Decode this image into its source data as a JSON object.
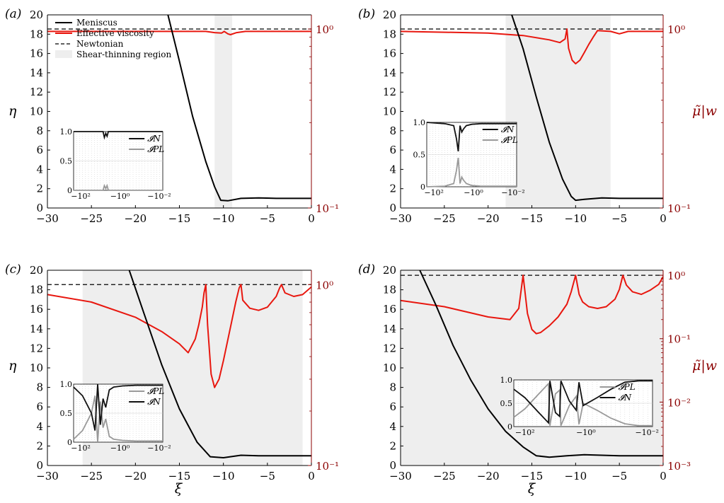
{
  "figure": {
    "xlabel": "ξ",
    "left_ylabel": "η",
    "right_ylabel": "μ̃|w",
    "colors": {
      "meniscus": "#000000",
      "viscosity": "#e8170f",
      "newtonian": "#000000",
      "shear_region": "#eeeeee",
      "right_axis": "#8b0000",
      "inset_pl": "#999999",
      "inset_n": "#111111"
    },
    "legend": [
      {
        "key": "meniscus",
        "label": "Meniscus"
      },
      {
        "key": "viscosity",
        "label": "Effective viscosity"
      },
      {
        "key": "newtonian",
        "label": "Newtonian"
      },
      {
        "key": "shear_region",
        "label": "Shear-thinning region"
      }
    ]
  },
  "chart_data": [
    {
      "type": "line",
      "panel": "(a)",
      "xlim": [
        -30,
        0
      ],
      "xticks": [
        -30,
        -25,
        -20,
        -15,
        -10,
        -5,
        0
      ],
      "ylim": [
        0,
        20
      ],
      "yticks": [
        0,
        2,
        4,
        6,
        8,
        10,
        12,
        14,
        16,
        18,
        20
      ],
      "y2_scale": "log",
      "y2_range": [
        0.1,
        1.2
      ],
      "y2_ticks": [
        {
          "value": 1,
          "label": "10⁰"
        },
        {
          "value": 0.1,
          "label": "10⁻¹"
        }
      ],
      "shear_region": [
        -11,
        -9
      ],
      "meniscus": {
        "x": [
          -16.3,
          -15,
          -13.5,
          -12,
          -11,
          -10.3,
          -9.5,
          -8,
          -6,
          -4,
          -2,
          0
        ],
        "y": [
          20,
          15.2,
          9.5,
          4.8,
          2.2,
          0.8,
          0.75,
          1.0,
          1.05,
          1.0,
          1.0,
          1.0
        ]
      },
      "viscosity": {
        "x": [
          -30,
          -12,
          -11,
          -10.2,
          -9.9,
          -9.5,
          -9.2,
          -8.5,
          -7.5,
          -6.5,
          -5.5,
          0
        ],
        "y": [
          0.97,
          0.97,
          0.955,
          0.95,
          0.97,
          0.94,
          0.93,
          0.955,
          0.97,
          0.97,
          0.97,
          0.97
        ]
      },
      "newtonian": 1,
      "inset": {
        "position": "bottom-left",
        "x_ticks": [
          "−10²",
          "−10⁰",
          "−10⁻²"
        ],
        "y_ticks": [
          "0",
          "0.5",
          "1.0"
        ],
        "legend": [
          "𝓘N",
          "𝓘PL"
        ],
        "I_N": {
          "x": [
            0,
            0.33,
            0.345,
            0.36,
            0.375,
            0.39,
            1
          ],
          "y": [
            1.0,
            1.0,
            0.9,
            0.97,
            0.92,
            1.0,
            1.0
          ]
        },
        "I_PL": {
          "x": [
            0,
            0.33,
            0.345,
            0.36,
            0.375,
            0.39,
            1
          ],
          "y": [
            0,
            0,
            0.08,
            0.03,
            0.08,
            0,
            0
          ]
        }
      }
    },
    {
      "type": "line",
      "panel": "(b)",
      "xlim": [
        -30,
        0
      ],
      "xticks": [
        -30,
        -25,
        -20,
        -15,
        -10,
        -5,
        0
      ],
      "ylim": [
        0,
        20
      ],
      "yticks": [
        0,
        2,
        4,
        6,
        8,
        10,
        12,
        14,
        16,
        18,
        20
      ],
      "y2_scale": "log",
      "y2_range": [
        0.1,
        1.2
      ],
      "y2_ticks": [
        {
          "value": 1,
          "label": "10⁰"
        },
        {
          "value": 0.1,
          "label": "10⁻¹"
        }
      ],
      "shear_region": [
        -18,
        -6
      ],
      "meniscus": {
        "x": [
          -17.3,
          -16,
          -14.5,
          -13,
          -11.5,
          -10.5,
          -10,
          -9,
          -7,
          -5,
          -3,
          -1,
          0
        ],
        "y": [
          20,
          16.5,
          11.5,
          6.8,
          3.0,
          1.2,
          0.8,
          0.9,
          1.05,
          1.0,
          1.0,
          1.0,
          1.0
        ]
      },
      "viscosity": {
        "x": [
          -30,
          -20,
          -16,
          -13,
          -11.8,
          -11.2,
          -11,
          -10.8,
          -10.4,
          -10,
          -9.5,
          -9,
          -8.5,
          -8,
          -7.5,
          -6,
          -5,
          -4,
          -3,
          0
        ],
        "y": [
          0.97,
          0.95,
          0.92,
          0.87,
          0.84,
          0.88,
          1.0,
          0.78,
          0.67,
          0.64,
          0.67,
          0.74,
          0.82,
          0.9,
          0.98,
          0.97,
          0.94,
          0.97,
          0.97,
          0.97
        ]
      },
      "newtonian": 1,
      "inset": {
        "position": "bottom-left",
        "x_ticks": [
          "−10²",
          "−10⁰",
          "−10⁻²"
        ],
        "y_ticks": [
          "0",
          "0.5",
          "1.0"
        ],
        "legend": [
          "𝓘N",
          "𝓘PL"
        ],
        "I_N": {
          "x": [
            0,
            0.2,
            0.3,
            0.33,
            0.35,
            0.37,
            0.39,
            0.41,
            0.44,
            0.5,
            0.6,
            1
          ],
          "y": [
            1.0,
            0.98,
            0.95,
            0.75,
            0.55,
            0.95,
            0.85,
            0.9,
            0.95,
            0.97,
            0.98,
            0.98
          ]
        },
        "I_PL": {
          "x": [
            0,
            0.2,
            0.3,
            0.33,
            0.35,
            0.37,
            0.39,
            0.41,
            0.44,
            0.5,
            0.6,
            1
          ],
          "y": [
            0,
            0.01,
            0.05,
            0.25,
            0.45,
            0.05,
            0.15,
            0.1,
            0.05,
            0.02,
            0.01,
            0.01
          ]
        }
      }
    },
    {
      "type": "line",
      "panel": "(c)",
      "xlim": [
        -30,
        0
      ],
      "xticks": [
        -30,
        -25,
        -20,
        -15,
        -10,
        -5,
        0
      ],
      "ylim": [
        0,
        20
      ],
      "yticks": [
        0,
        2,
        4,
        6,
        8,
        10,
        12,
        14,
        16,
        18,
        20
      ],
      "y2_scale": "log",
      "y2_range": [
        0.1,
        1.2
      ],
      "y2_ticks": [
        {
          "value": 1,
          "label": "10⁰"
        },
        {
          "value": 0.1,
          "label": "10⁻¹"
        }
      ],
      "shear_region": [
        -26,
        -1
      ],
      "meniscus": {
        "x": [
          -20.7,
          -19,
          -17,
          -15,
          -13,
          -11.5,
          -10,
          -8,
          -6,
          -3,
          0
        ],
        "y": [
          20,
          15.5,
          10.3,
          5.8,
          2.4,
          0.9,
          0.8,
          1.05,
          1.0,
          1.0,
          1.0
        ]
      },
      "viscosity": {
        "x": [
          -30,
          -25,
          -20,
          -17,
          -15,
          -14,
          -13.2,
          -12.8,
          -12.4,
          -12.2,
          -12,
          -11.8,
          -11.4,
          -11,
          -10.5,
          -10,
          -9.2,
          -8.6,
          -8.2,
          -8,
          -7.8,
          -7,
          -6,
          -5,
          -4,
          -3.6,
          -3.4,
          -3,
          -2,
          -1,
          0
        ],
        "y": [
          0.88,
          0.8,
          0.66,
          0.55,
          0.47,
          0.42,
          0.5,
          0.6,
          0.75,
          0.9,
          1.0,
          0.6,
          0.32,
          0.27,
          0.3,
          0.38,
          0.58,
          0.8,
          0.96,
          1.0,
          0.82,
          0.74,
          0.72,
          0.75,
          0.86,
          0.96,
          1.0,
          0.9,
          0.86,
          0.88,
          0.97
        ]
      },
      "newtonian": 1,
      "inset": {
        "position": "bottom-left",
        "x_ticks": [
          "−10²",
          "−10⁰",
          "−10⁻²"
        ],
        "y_ticks": [
          "0",
          "0.5",
          "1.0"
        ],
        "legend": [
          "𝓘PL",
          "𝓘N"
        ],
        "I_N": {
          "x": [
            0,
            0.1,
            0.2,
            0.24,
            0.27,
            0.3,
            0.33,
            0.36,
            0.4,
            0.45,
            0.55,
            0.7,
            1
          ],
          "y": [
            0.95,
            0.8,
            0.5,
            0.2,
            1.0,
            0.3,
            0.75,
            0.6,
            0.9,
            0.95,
            0.97,
            0.98,
            0.98
          ]
        },
        "I_PL": {
          "x": [
            0,
            0.1,
            0.2,
            0.24,
            0.27,
            0.3,
            0.33,
            0.36,
            0.4,
            0.45,
            0.55,
            0.7,
            1
          ],
          "y": [
            0.05,
            0.2,
            0.5,
            0.8,
            0.0,
            0.7,
            0.25,
            0.4,
            0.1,
            0.05,
            0.03,
            0.02,
            0.02
          ]
        }
      }
    },
    {
      "type": "line",
      "panel": "(d)",
      "xlim": [
        -30,
        0
      ],
      "xticks": [
        -30,
        -25,
        -20,
        -15,
        -10,
        -5,
        0
      ],
      "ylim": [
        0,
        20
      ],
      "yticks": [
        0,
        2,
        4,
        6,
        8,
        10,
        12,
        14,
        16,
        18,
        20
      ],
      "y2_scale": "log",
      "y2_range": [
        0.001,
        1.2
      ],
      "y2_ticks": [
        {
          "value": 1,
          "label": "10⁰"
        },
        {
          "value": 0.1,
          "label": "10⁻¹"
        },
        {
          "value": 0.01,
          "label": "10⁻²"
        },
        {
          "value": 0.001,
          "label": "10⁻³"
        }
      ],
      "shear_region": [
        -30,
        0
      ],
      "meniscus": {
        "x": [
          -27.8,
          -26,
          -24,
          -22,
          -20,
          -18,
          -16,
          -14.5,
          -13,
          -11,
          -9,
          -7,
          -5,
          -3,
          0
        ],
        "y": [
          20,
          16.5,
          12.3,
          8.8,
          5.8,
          3.5,
          1.9,
          1.0,
          0.85,
          1.0,
          1.1,
          1.05,
          1.0,
          1.0,
          1.0
        ]
      },
      "viscosity": {
        "x": [
          -30,
          -25,
          -20,
          -17.5,
          -16.5,
          -16,
          -15.5,
          -15,
          -14.5,
          -14,
          -13,
          -12,
          -11,
          -10.5,
          -10,
          -9.6,
          -9.2,
          -8.5,
          -7.5,
          -6.5,
          -5.5,
          -5,
          -4.6,
          -4.2,
          -3.5,
          -2.5,
          -1.5,
          -0.5,
          0
        ],
        "y": [
          0.4,
          0.32,
          0.22,
          0.2,
          0.3,
          1.0,
          0.25,
          0.14,
          0.12,
          0.125,
          0.16,
          0.22,
          0.35,
          0.55,
          1.0,
          0.5,
          0.38,
          0.32,
          0.3,
          0.32,
          0.42,
          0.6,
          1.0,
          0.7,
          0.55,
          0.5,
          0.58,
          0.72,
          0.95
        ]
      },
      "newtonian": 1,
      "inset": {
        "position": "center-right",
        "x_ticks": [
          "−10²",
          "−10⁰",
          "−10⁻²"
        ],
        "y_ticks": [
          "0",
          "0.5",
          "1.0"
        ],
        "legend": [
          "𝓘PL",
          "𝓘N"
        ],
        "I_N": {
          "x": [
            0,
            0.08,
            0.18,
            0.25,
            0.26,
            0.3,
            0.33,
            0.34,
            0.4,
            0.45,
            0.47,
            0.5,
            0.6,
            0.7,
            0.8,
            0.9,
            1
          ],
          "y": [
            0.8,
            0.62,
            0.3,
            0.08,
            0.98,
            0.3,
            0.22,
            0.98,
            0.55,
            0.35,
            0.95,
            0.45,
            0.62,
            0.8,
            0.95,
            0.98,
            0.98
          ]
        },
        "I_PL": {
          "x": [
            0,
            0.08,
            0.18,
            0.25,
            0.26,
            0.3,
            0.33,
            0.34,
            0.4,
            0.45,
            0.47,
            0.5,
            0.6,
            0.7,
            0.8,
            0.9,
            1
          ],
          "y": [
            0.2,
            0.38,
            0.7,
            0.92,
            0.02,
            0.7,
            0.78,
            0.02,
            0.45,
            0.65,
            0.05,
            0.5,
            0.35,
            0.18,
            0.06,
            0.02,
            0.02
          ]
        }
      }
    }
  ]
}
